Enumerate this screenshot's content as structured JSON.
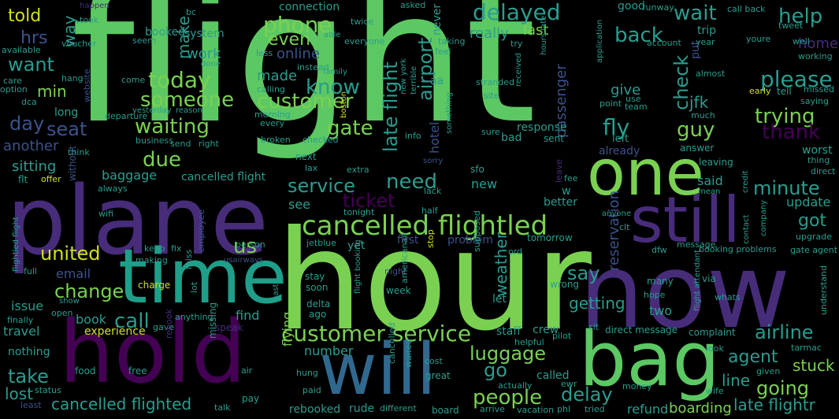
{
  "palette": {
    "green": "#5cc863",
    "lightgreen": "#7ad151",
    "teal": "#2a9d8f",
    "cyan": "#1f9e89",
    "blue": "#31688e",
    "darkblue": "#3b528b",
    "purple": "#472c7a",
    "violet": "#440154",
    "yellow": "#d0e11c"
  },
  "words": [
    {
      "text": "flight",
      "color": "green"
    },
    {
      "text": "hour",
      "color": "lightgreen"
    },
    {
      "text": "plane",
      "color": "purple"
    },
    {
      "text": "now",
      "color": "purple"
    },
    {
      "text": "hold",
      "color": "violet"
    },
    {
      "text": "time",
      "color": "cyan"
    },
    {
      "text": "bag",
      "color": "green"
    },
    {
      "text": "will",
      "color": "blue"
    },
    {
      "text": "still",
      "color": "purple"
    },
    {
      "text": "one",
      "color": "lightgreen"
    },
    {
      "text": "cancelled flightled",
      "color": "lightgreen"
    },
    {
      "text": "customer service",
      "color": "lightgreen"
    },
    {
      "text": "late flight",
      "color": "teal"
    },
    {
      "text": "delayed",
      "color": "teal"
    },
    {
      "text": "phone",
      "color": "lightgreen"
    },
    {
      "text": "today",
      "color": "lightgreen"
    },
    {
      "text": "waiting",
      "color": "lightgreen"
    },
    {
      "text": "customer",
      "color": "lightgreen"
    },
    {
      "text": "someone",
      "color": "lightgreen"
    },
    {
      "text": "please",
      "color": "teal"
    },
    {
      "text": "trying",
      "color": "lightgreen"
    },
    {
      "text": "wait",
      "color": "teal"
    },
    {
      "text": "help",
      "color": "teal"
    },
    {
      "text": "back",
      "color": "teal"
    },
    {
      "text": "check",
      "color": "teal"
    },
    {
      "text": "airport",
      "color": "teal"
    },
    {
      "text": "service",
      "color": "teal"
    },
    {
      "text": "need",
      "color": "teal"
    },
    {
      "text": "ticket",
      "color": "violet"
    },
    {
      "text": "minute",
      "color": "teal"
    },
    {
      "text": "thank",
      "color": "violet"
    },
    {
      "text": "guy",
      "color": "lightgreen"
    },
    {
      "text": "fly",
      "color": "teal"
    },
    {
      "text": "gate",
      "color": "lightgreen"
    },
    {
      "text": "know",
      "color": "teal"
    },
    {
      "text": "due",
      "color": "lightgreen"
    },
    {
      "text": "united",
      "color": "yellow"
    },
    {
      "text": "us",
      "color": "lightgreen"
    },
    {
      "text": "change",
      "color": "lightgreen"
    },
    {
      "text": "call",
      "color": "teal"
    },
    {
      "text": "luggage",
      "color": "lightgreen"
    },
    {
      "text": "people",
      "color": "lightgreen"
    },
    {
      "text": "delay",
      "color": "teal"
    },
    {
      "text": "agent",
      "color": "teal"
    },
    {
      "text": "airline",
      "color": "teal"
    },
    {
      "text": "going",
      "color": "lightgreen"
    },
    {
      "text": "got",
      "color": "teal"
    },
    {
      "text": "say",
      "color": "teal"
    },
    {
      "text": "getting",
      "color": "teal"
    },
    {
      "text": "reservation",
      "color": "darkblue"
    },
    {
      "text": "weather",
      "color": "teal"
    },
    {
      "text": "go",
      "color": "teal"
    },
    {
      "text": "take",
      "color": "teal"
    },
    {
      "text": "lost",
      "color": "teal"
    },
    {
      "text": "cancelled flighted",
      "color": "teal"
    },
    {
      "text": "late flightr",
      "color": "teal"
    },
    {
      "text": "stuck",
      "color": "lightgreen"
    },
    {
      "text": "line",
      "color": "teal"
    },
    {
      "text": "refund",
      "color": "teal"
    },
    {
      "text": "boarding",
      "color": "lightgreen"
    },
    {
      "text": "day",
      "color": "darkblue"
    },
    {
      "text": "seat",
      "color": "darkblue"
    },
    {
      "text": "want",
      "color": "teal"
    },
    {
      "text": "hrs",
      "color": "darkblue"
    },
    {
      "text": "told",
      "color": "yellow"
    },
    {
      "text": "way",
      "color": "teal"
    },
    {
      "text": "min",
      "color": "lightgreen"
    },
    {
      "text": "make",
      "color": "teal"
    },
    {
      "text": "even",
      "color": "lightgreen"
    },
    {
      "text": "work",
      "color": "teal"
    },
    {
      "text": "made",
      "color": "teal"
    },
    {
      "text": "online",
      "color": "darkblue"
    },
    {
      "text": "really",
      "color": "teal"
    },
    {
      "text": "last",
      "color": "lightgreen"
    },
    {
      "text": "home",
      "color": "purple"
    },
    {
      "text": "give",
      "color": "teal"
    },
    {
      "text": "jfk",
      "color": "teal"
    },
    {
      "text": "passenger",
      "color": "darkblue"
    },
    {
      "text": "hotel",
      "color": "darkblue"
    },
    {
      "text": "sitting",
      "color": "teal"
    },
    {
      "text": "another",
      "color": "darkblue"
    },
    {
      "text": "baggage",
      "color": "teal"
    },
    {
      "text": "cancelled flight",
      "color": "teal"
    },
    {
      "text": "email",
      "color": "darkblue"
    },
    {
      "text": "issue",
      "color": "teal"
    },
    {
      "text": "book",
      "color": "teal"
    },
    {
      "text": "travel",
      "color": "teal"
    },
    {
      "text": "experience",
      "color": "yellow"
    },
    {
      "text": "nothing",
      "color": "teal"
    },
    {
      "text": "find",
      "color": "teal"
    },
    {
      "text": "number",
      "color": "teal"
    },
    {
      "text": "flying",
      "color": "lightgreen"
    },
    {
      "text": "see",
      "color": "teal"
    },
    {
      "text": "new",
      "color": "teal"
    },
    {
      "text": "said",
      "color": "teal"
    },
    {
      "text": "update",
      "color": "teal"
    },
    {
      "text": "two",
      "color": "teal"
    },
    {
      "text": "crew",
      "color": "teal"
    },
    {
      "text": "staff",
      "color": "teal"
    },
    {
      "text": "called",
      "color": "teal"
    },
    {
      "text": "rebooked",
      "color": "teal"
    },
    {
      "text": "rude",
      "color": "teal"
    },
    {
      "text": "connection",
      "color": "teal"
    },
    {
      "text": "good",
      "color": "teal"
    },
    {
      "text": "runway",
      "color": "teal"
    },
    {
      "text": "call back",
      "color": "teal"
    },
    {
      "text": "trip",
      "color": "teal"
    },
    {
      "text": "system",
      "color": "teal"
    },
    {
      "text": "booked",
      "color": "teal"
    },
    {
      "text": "problem",
      "color": "darkblue"
    },
    {
      "text": "tomorrow",
      "color": "teal"
    },
    {
      "text": "next",
      "color": "teal"
    },
    {
      "text": "better",
      "color": "teal"
    },
    {
      "text": "yet",
      "color": "teal"
    },
    {
      "text": "worst",
      "color": "teal"
    },
    {
      "text": "leaving",
      "color": "teal"
    },
    {
      "text": "answer",
      "color": "teal"
    },
    {
      "text": "already",
      "color": "darkblue"
    },
    {
      "text": "response",
      "color": "teal"
    },
    {
      "text": "bad",
      "color": "teal"
    },
    {
      "text": "sent",
      "color": "teal"
    },
    {
      "text": "tonight",
      "color": "teal"
    },
    {
      "text": "sfo",
      "color": "teal"
    },
    {
      "text": "aa",
      "color": "teal"
    },
    {
      "text": "first",
      "color": "darkblue"
    },
    {
      "text": "never",
      "color": "teal"
    },
    {
      "text": "long",
      "color": "teal"
    },
    {
      "text": "extra",
      "color": "teal"
    },
    {
      "text": "delta",
      "color": "teal"
    },
    {
      "text": "week",
      "color": "teal"
    },
    {
      "text": "stay",
      "color": "teal"
    },
    {
      "text": "soon",
      "color": "teal"
    },
    {
      "text": "ago",
      "color": "teal"
    },
    {
      "text": "let",
      "color": "teal"
    },
    {
      "text": "wrong",
      "color": "teal"
    },
    {
      "text": "many",
      "color": "teal"
    },
    {
      "text": "hope",
      "color": "teal"
    },
    {
      "text": "food",
      "color": "teal"
    },
    {
      "text": "free",
      "color": "teal"
    },
    {
      "text": "pay",
      "color": "teal"
    },
    {
      "text": "great",
      "color": "teal"
    },
    {
      "text": "board",
      "color": "teal"
    },
    {
      "text": "different",
      "color": "teal"
    },
    {
      "text": "talk",
      "color": "teal"
    },
    {
      "text": "status",
      "color": "teal"
    },
    {
      "text": "least",
      "color": "darkblue"
    },
    {
      "text": "tried",
      "color": "teal"
    },
    {
      "text": "money",
      "color": "teal"
    },
    {
      "text": "wife",
      "color": "teal"
    },
    {
      "text": "given",
      "color": "teal"
    },
    {
      "text": "look",
      "color": "teal"
    },
    {
      "text": "complaint",
      "color": "teal"
    },
    {
      "text": "direct message",
      "color": "teal"
    },
    {
      "text": "booking problems",
      "color": "teal"
    },
    {
      "text": "gate agent",
      "color": "teal"
    },
    {
      "text": "upgrade",
      "color": "teal"
    },
    {
      "text": "via",
      "color": "teal"
    },
    {
      "text": "whats",
      "color": "teal"
    },
    {
      "text": "tarmac",
      "color": "teal"
    },
    {
      "text": "understand",
      "color": "teal"
    },
    {
      "text": "mean",
      "color": "teal"
    },
    {
      "text": "direct",
      "color": "teal"
    },
    {
      "text": "thing",
      "color": "teal"
    },
    {
      "text": "anyone",
      "color": "teal"
    },
    {
      "text": "clt",
      "color": "teal"
    },
    {
      "text": "dfw",
      "color": "teal"
    },
    {
      "text": "message",
      "color": "teal"
    },
    {
      "text": "sit",
      "color": "teal"
    },
    {
      "text": "pilot",
      "color": "teal"
    },
    {
      "text": "helpful",
      "color": "teal"
    },
    {
      "text": "charge",
      "color": "yellow"
    },
    {
      "text": "keep",
      "color": "teal"
    },
    {
      "text": "fix",
      "color": "teal"
    },
    {
      "text": "making",
      "color": "teal"
    },
    {
      "text": "employee",
      "color": "darkblue"
    },
    {
      "text": "usairways",
      "color": "darkblue"
    },
    {
      "text": "person",
      "color": "teal"
    },
    {
      "text": "jetblue",
      "color": "teal"
    },
    {
      "text": "offer",
      "color": "yellow"
    },
    {
      "text": "flt",
      "color": "teal"
    },
    {
      "text": "without",
      "color": "darkblue"
    },
    {
      "text": "always",
      "color": "teal"
    },
    {
      "text": "wifi",
      "color": "teal"
    },
    {
      "text": "full",
      "color": "teal"
    },
    {
      "text": "open",
      "color": "teal"
    },
    {
      "text": "finally",
      "color": "teal"
    },
    {
      "text": "show",
      "color": "teal"
    },
    {
      "text": "lot",
      "color": "teal"
    },
    {
      "text": "anything",
      "color": "teal"
    },
    {
      "text": "gave",
      "color": "teal"
    },
    {
      "text": "speak",
      "color": "purple"
    },
    {
      "text": "rebook",
      "color": "purple"
    },
    {
      "text": "missing",
      "color": "teal"
    },
    {
      "text": "air",
      "color": "teal"
    },
    {
      "text": "hung",
      "color": "teal"
    },
    {
      "text": "paid",
      "color": "teal"
    },
    {
      "text": "cost",
      "color": "teal"
    },
    {
      "text": "actually",
      "color": "teal"
    },
    {
      "text": "ewr",
      "color": "teal"
    },
    {
      "text": "arrive",
      "color": "teal"
    },
    {
      "text": "vacation",
      "color": "teal"
    },
    {
      "text": "phl",
      "color": "teal"
    },
    {
      "text": "night",
      "color": "darkblue"
    },
    {
      "text": "ord",
      "color": "teal"
    },
    {
      "text": "stop",
      "color": "yellow"
    },
    {
      "text": "supposed",
      "color": "teal"
    },
    {
      "text": "past",
      "color": "teal"
    },
    {
      "text": "americanair",
      "color": "teal"
    },
    {
      "text": "flight booking",
      "color": "teal"
    },
    {
      "text": "waited",
      "color": "teal"
    },
    {
      "text": "cancelled",
      "color": "teal"
    },
    {
      "text": "miss",
      "color": "teal"
    },
    {
      "text": "care",
      "color": "teal"
    },
    {
      "text": "hang",
      "color": "teal"
    },
    {
      "text": "option",
      "color": "teal"
    },
    {
      "text": "come",
      "color": "teal"
    },
    {
      "text": "dca",
      "color": "teal"
    },
    {
      "text": "website",
      "color": "darkblue"
    },
    {
      "text": "departure",
      "color": "teal"
    },
    {
      "text": "yesterday",
      "color": "teal"
    },
    {
      "text": "reason",
      "color": "teal"
    },
    {
      "text": "business",
      "color": "teal"
    },
    {
      "text": "send",
      "color": "teal"
    },
    {
      "text": "right",
      "color": "teal"
    },
    {
      "text": "think",
      "color": "teal"
    },
    {
      "text": "available",
      "color": "teal"
    },
    {
      "text": "voucher",
      "color": "teal"
    },
    {
      "text": "seem",
      "color": "teal"
    },
    {
      "text": "took",
      "color": "teal"
    },
    {
      "text": "happen",
      "color": "purple"
    },
    {
      "text": "bc",
      "color": "teal"
    },
    {
      "text": "done",
      "color": "teal"
    },
    {
      "text": "less",
      "color": "teal"
    },
    {
      "text": "instead",
      "color": "teal"
    },
    {
      "text": "family",
      "color": "teal"
    },
    {
      "text": "calling",
      "color": "teal"
    },
    {
      "text": "morning",
      "color": "teal"
    },
    {
      "text": "every",
      "color": "teal"
    },
    {
      "text": "broken",
      "color": "teal"
    },
    {
      "text": "checked",
      "color": "teal"
    },
    {
      "text": "lax",
      "color": "teal"
    },
    {
      "text": "boston",
      "color": "yellow"
    },
    {
      "text": "new york",
      "color": "teal"
    },
    {
      "text": "terrible",
      "color": "teal"
    },
    {
      "text": "info",
      "color": "teal"
    },
    {
      "text": "sorry",
      "color": "darkblue"
    },
    {
      "text": "something",
      "color": "teal"
    },
    {
      "text": "lack",
      "color": "teal"
    },
    {
      "text": "half",
      "color": "teal"
    },
    {
      "text": "stranded",
      "color": "teal"
    },
    {
      "text": "site",
      "color": "teal"
    },
    {
      "text": "received",
      "color": "teal"
    },
    {
      "text": "sure",
      "color": "teal"
    },
    {
      "text": "twice",
      "color": "teal"
    },
    {
      "text": "able",
      "color": "teal"
    },
    {
      "text": "everyone",
      "color": "teal"
    },
    {
      "text": "asked",
      "color": "teal"
    },
    {
      "text": "taking",
      "color": "teal"
    },
    {
      "text": "try",
      "color": "teal"
    },
    {
      "text": "feel",
      "color": "teal"
    },
    {
      "text": "hours late",
      "color": "teal"
    },
    {
      "text": "application",
      "color": "teal"
    },
    {
      "text": "account",
      "color": "teal"
    },
    {
      "text": "year",
      "color": "teal"
    },
    {
      "text": "tweet",
      "color": "teal"
    },
    {
      "text": "youre",
      "color": "teal"
    },
    {
      "text": "well",
      "color": "teal"
    },
    {
      "text": "working",
      "color": "teal"
    },
    {
      "text": "missed",
      "color": "teal"
    },
    {
      "text": "saying",
      "color": "teal"
    },
    {
      "text": "almost",
      "color": "teal"
    },
    {
      "text": "early",
      "color": "yellow"
    },
    {
      "text": "tell",
      "color": "teal"
    },
    {
      "text": "use",
      "color": "teal"
    },
    {
      "text": "point",
      "color": "teal"
    },
    {
      "text": "team",
      "color": "teal"
    },
    {
      "text": "much",
      "color": "teal"
    },
    {
      "text": "flightled flight",
      "color": "teal"
    },
    {
      "text": "contact",
      "color": "teal"
    },
    {
      "text": "company",
      "color": "teal"
    },
    {
      "text": "credit",
      "color": "teal"
    },
    {
      "text": "flight attendant",
      "color": "teal"
    },
    {
      "text": "fee",
      "color": "teal"
    },
    {
      "text": "put",
      "color": "darkblue"
    },
    {
      "text": "left",
      "color": "teal"
    },
    {
      "text": "leave",
      "color": "purple"
    },
    {
      "text": "w",
      "color": "teal"
    }
  ]
}
